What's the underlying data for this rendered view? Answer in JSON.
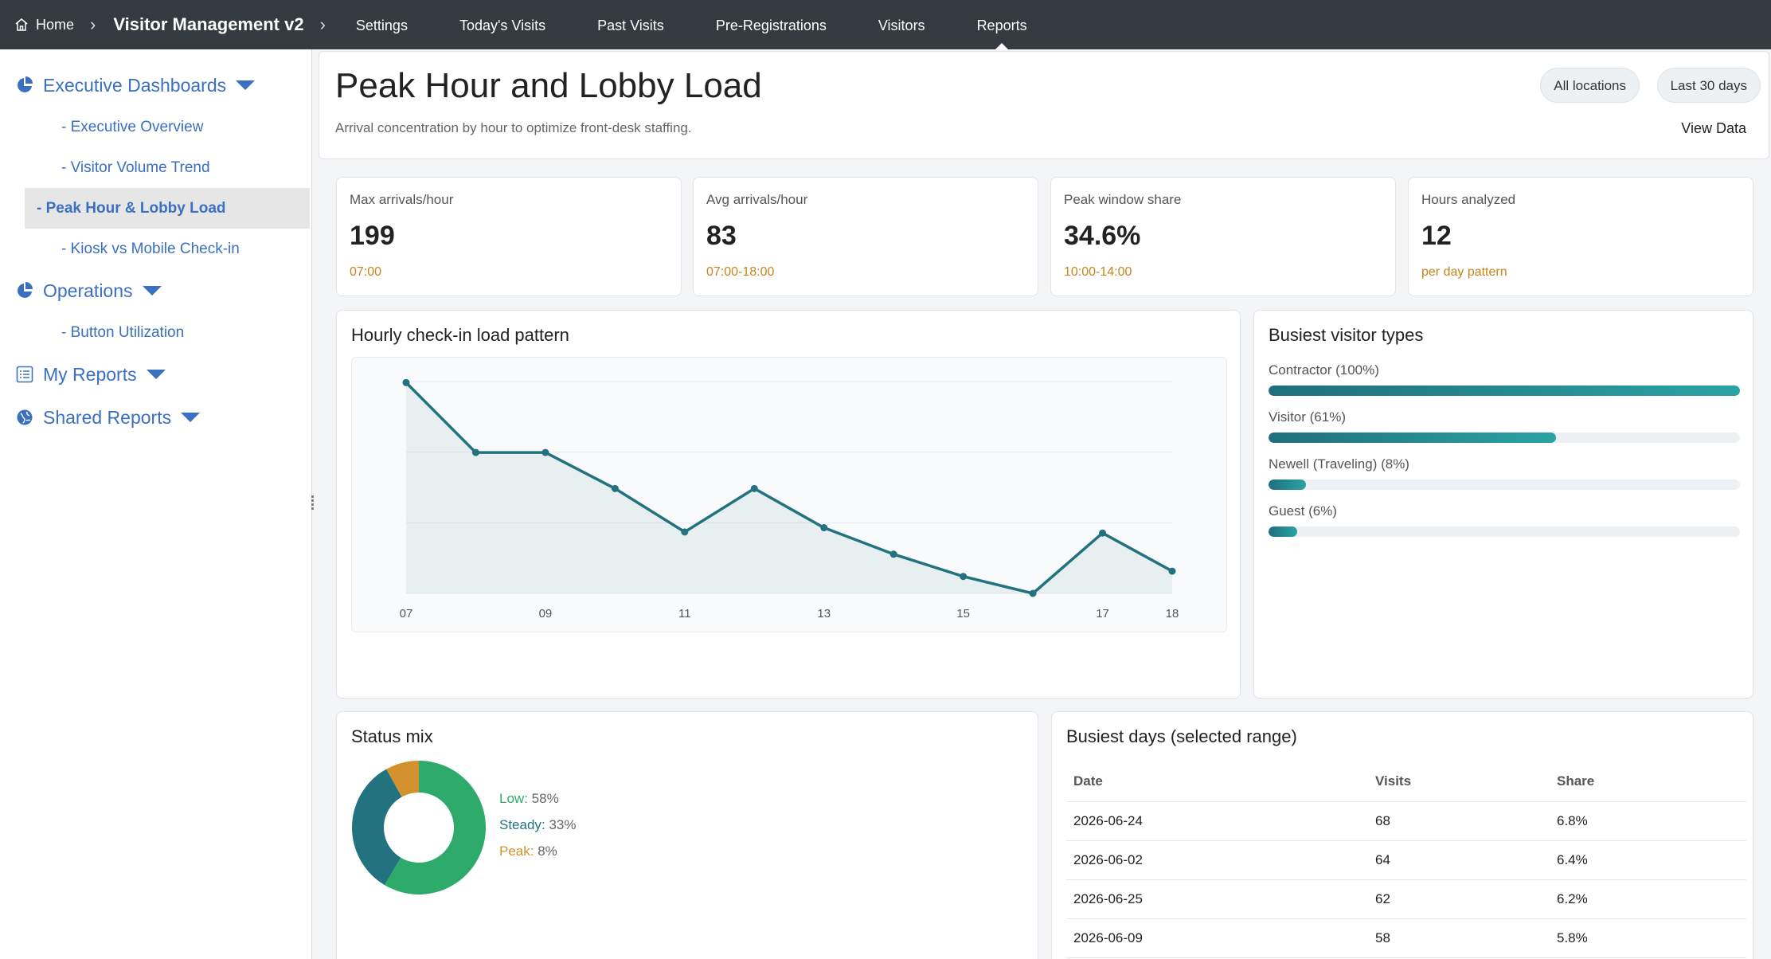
{
  "topbar": {
    "home_label": "Home",
    "app_title": "Visitor Management v2",
    "nav": [
      {
        "label": "Settings"
      },
      {
        "label": "Today's Visits"
      },
      {
        "label": "Past Visits"
      },
      {
        "label": "Pre-Registrations"
      },
      {
        "label": "Visitors"
      },
      {
        "label": "Reports",
        "active": true
      }
    ]
  },
  "sidebar": {
    "sections": [
      {
        "label": "Executive Dashboards",
        "icon": "pie-chart-icon",
        "items": [
          {
            "label": "- Executive Overview"
          },
          {
            "label": "- Visitor Volume Trend"
          },
          {
            "label": "- Peak Hour & Lobby Load",
            "active": true
          },
          {
            "label": "- Kiosk vs Mobile Check-in"
          }
        ]
      },
      {
        "label": "Operations",
        "icon": "pie-chart-icon",
        "items": [
          {
            "label": "- Button Utilization"
          }
        ]
      },
      {
        "label": "My Reports",
        "icon": "list-icon",
        "items": []
      },
      {
        "label": "Shared Reports",
        "icon": "globe-icon",
        "items": []
      }
    ]
  },
  "header": {
    "title": "Peak Hour and Lobby Load",
    "subtitle": "Arrival concentration by hour to optimize front-desk staffing.",
    "chip_locations": "All locations",
    "chip_range": "Last 30 days",
    "view_data": "View Data"
  },
  "kpis": [
    {
      "label": "Max arrivals/hour",
      "value": "199",
      "sub": "07:00"
    },
    {
      "label": "Avg arrivals/hour",
      "value": "83",
      "sub": "07:00-18:00"
    },
    {
      "label": "Peak window share",
      "value": "34.6%",
      "sub": "10:00-14:00"
    },
    {
      "label": "Hours analyzed",
      "value": "12",
      "sub": "per day pattern"
    }
  ],
  "colors": {
    "accent": "#22737f",
    "low": "#2eaa6a",
    "steady": "#22737f",
    "peak": "#d4922e",
    "kpi_sub": "#c8841a",
    "link": "#3b6fbf"
  },
  "hourly": {
    "title": "Hourly check-in load pattern",
    "chart_data": {
      "type": "area",
      "x": [
        "07",
        "08",
        "09",
        "10",
        "11",
        "12",
        "13",
        "14",
        "15",
        "16",
        "17",
        "18"
      ],
      "tick_labels": [
        "07",
        "09",
        "11",
        "13",
        "15",
        "17",
        "18"
      ],
      "values": [
        199,
        133,
        133,
        99,
        58,
        99,
        62,
        37,
        16,
        0,
        57,
        21
      ],
      "ylim": [
        0,
        200
      ],
      "grid": true
    }
  },
  "visitor_types": {
    "title": "Busiest visitor types",
    "items": [
      {
        "label": "Contractor (100%)",
        "value": 100
      },
      {
        "label": "Visitor (61%)",
        "value": 61
      },
      {
        "label": "Newell (Traveling) (8%)",
        "value": 8
      },
      {
        "label": "Guest (6%)",
        "value": 6
      }
    ]
  },
  "status_mix": {
    "title": "Status mix",
    "chart_data": {
      "type": "pie",
      "slices": [
        {
          "name": "Low",
          "value": 58,
          "label": "58%"
        },
        {
          "name": "Steady",
          "value": 33,
          "label": "33%"
        },
        {
          "name": "Peak",
          "value": 8,
          "label": "8%"
        }
      ]
    }
  },
  "busiest_days": {
    "title": "Busiest days (selected range)",
    "columns": [
      "Date",
      "Visits",
      "Share"
    ],
    "rows": [
      [
        "2026-06-24",
        "68",
        "6.8%"
      ],
      [
        "2026-06-02",
        "64",
        "6.4%"
      ],
      [
        "2026-06-25",
        "62",
        "6.2%"
      ],
      [
        "2026-06-09",
        "58",
        "5.8%"
      ]
    ]
  }
}
